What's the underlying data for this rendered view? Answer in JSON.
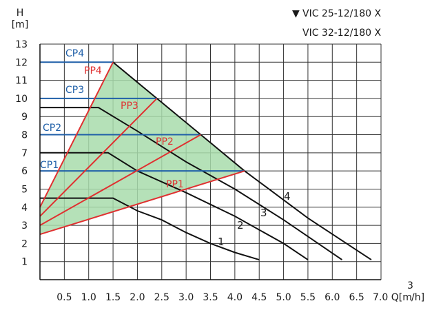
{
  "chart_data": {
    "type": "line",
    "y_axis": {
      "label_symbol": "H",
      "label_unit": "[m]",
      "range": [
        0,
        13
      ],
      "ticks": [
        1,
        2,
        3,
        4,
        5,
        6,
        7,
        8,
        9,
        10,
        11,
        12,
        13
      ]
    },
    "x_axis": {
      "label": "Q[m³/h]",
      "range": [
        0,
        7.0
      ],
      "ticks": [
        0.5,
        1.0,
        1.5,
        2.0,
        2.5,
        3.0,
        3.5,
        4.0,
        4.5,
        5.0,
        5.5,
        6.0,
        6.5,
        7.0
      ],
      "tick_labels": [
        "0.5",
        "1.0",
        "1.5",
        "2.0",
        "2.5",
        "3.0",
        "3.5",
        "4.0",
        "4.5",
        "5.0",
        "5.5",
        "6.0",
        "6.5",
        "7.0 Q[m"
      ],
      "unit_suffix": "/h]",
      "unit_exponent": "3"
    },
    "grid": true,
    "legend": {
      "marker": "▼",
      "lines": [
        "VIC 25-12/180 X",
        "VIC 32-12/180 X"
      ],
      "position": "top-right"
    },
    "region": {
      "name": "operating-area",
      "color": "#a8dcac",
      "points": [
        [
          0,
          2.5
        ],
        [
          0,
          4
        ],
        [
          1.5,
          12
        ],
        [
          4.2,
          6
        ]
      ]
    },
    "curves": [
      {
        "label": "1",
        "color": "#111111",
        "points": [
          [
            0,
            4.5
          ],
          [
            1.5,
            4.5
          ],
          [
            2.0,
            3.8
          ],
          [
            2.5,
            3.3
          ],
          [
            3.0,
            2.6
          ],
          [
            3.5,
            2.0
          ],
          [
            4.0,
            1.5
          ],
          [
            4.5,
            1.1
          ]
        ]
      },
      {
        "label": "2",
        "color": "#111111",
        "points": [
          [
            0,
            7.0
          ],
          [
            1.4,
            7.0
          ],
          [
            2.0,
            6.0
          ],
          [
            3.0,
            4.8
          ],
          [
            4.0,
            3.5
          ],
          [
            5.0,
            2.0
          ],
          [
            5.5,
            1.1
          ]
        ]
      },
      {
        "label": "3",
        "color": "#111111",
        "points": [
          [
            0,
            9.5
          ],
          [
            1.2,
            9.5
          ],
          [
            2.0,
            8.2
          ],
          [
            3.0,
            6.5
          ],
          [
            4.0,
            5.0
          ],
          [
            5.0,
            3.3
          ],
          [
            6.2,
            1.1
          ]
        ]
      },
      {
        "label": "4",
        "color": "#111111",
        "points": [
          [
            1.5,
            12.0
          ],
          [
            2.4,
            10.0
          ],
          [
            3.3,
            8.0
          ],
          [
            4.2,
            6.0
          ],
          [
            5.5,
            3.4
          ],
          [
            6.8,
            1.1
          ]
        ]
      }
    ],
    "constant_pressure": [
      {
        "label": "CP1",
        "y": 6,
        "x_end": 4.2,
        "color": "#1f5fa8"
      },
      {
        "label": "CP2",
        "y": 8,
        "x_end": 3.3,
        "color": "#1f5fa8"
      },
      {
        "label": "CP3",
        "y": 10,
        "x_end": 2.4,
        "color": "#1f5fa8"
      },
      {
        "label": "CP4",
        "y": 12,
        "x_end": 1.5,
        "color": "#1f5fa8"
      }
    ],
    "proportional_pressure": [
      {
        "label": "PP1",
        "start": [
          0,
          2.5
        ],
        "end": [
          4.2,
          6
        ],
        "color": "#e03030"
      },
      {
        "label": "PP2",
        "start": [
          0,
          3.0
        ],
        "end": [
          3.3,
          8
        ],
        "color": "#e03030"
      },
      {
        "label": "PP3",
        "start": [
          0,
          3.5
        ],
        "end": [
          2.4,
          10
        ],
        "color": "#e03030"
      },
      {
        "label": "PP4",
        "start": [
          0,
          4.0
        ],
        "end": [
          1.5,
          12
        ],
        "color": "#e03030"
      }
    ]
  }
}
